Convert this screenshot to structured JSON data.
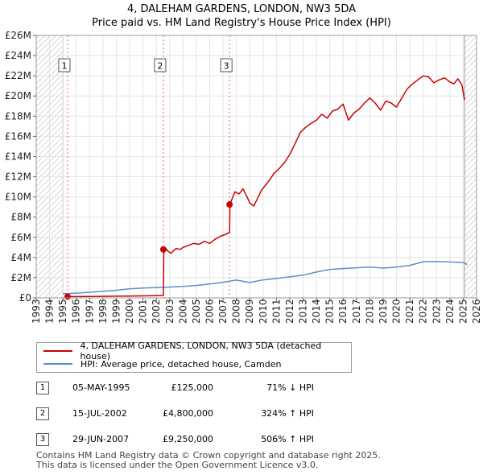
{
  "header": {
    "title_line1": "4, DALEHAM GARDENS, LONDON, NW3 5DA",
    "title_line2": "Price paid vs. HM Land Registry's House Price Index (HPI)"
  },
  "chart_data": {
    "type": "line",
    "title": "4, DALEHAM GARDENS, LONDON, NW3 5DA — Price paid vs. HM Land Registry's House Price Index (HPI)",
    "xlabel": "",
    "ylabel": "",
    "xlim": [
      1993,
      2026
    ],
    "ylim": [
      0,
      26000000
    ],
    "x_ticks": [
      1993,
      1994,
      1995,
      1996,
      1997,
      1998,
      1999,
      2000,
      2001,
      2002,
      2003,
      2004,
      2005,
      2006,
      2007,
      2008,
      2009,
      2010,
      2011,
      2012,
      2013,
      2014,
      2015,
      2016,
      2017,
      2018,
      2019,
      2020,
      2021,
      2022,
      2023,
      2024,
      2025,
      2026
    ],
    "y_ticks": [
      {
        "value": 0,
        "label": "£0"
      },
      {
        "value": 2000000,
        "label": "£2M"
      },
      {
        "value": 4000000,
        "label": "£4M"
      },
      {
        "value": 6000000,
        "label": "£6M"
      },
      {
        "value": 8000000,
        "label": "£8M"
      },
      {
        "value": 10000000,
        "label": "£10M"
      },
      {
        "value": 12000000,
        "label": "£12M"
      },
      {
        "value": 14000000,
        "label": "£14M"
      },
      {
        "value": 16000000,
        "label": "£16M"
      },
      {
        "value": 18000000,
        "label": "£18M"
      },
      {
        "value": 20000000,
        "label": "£20M"
      },
      {
        "value": 22000000,
        "label": "£22M"
      },
      {
        "value": 24000000,
        "label": "£24M"
      },
      {
        "value": 26000000,
        "label": "£26M"
      }
    ],
    "grid": true,
    "hatched_ranges": [
      [
        1993,
        1995.0
      ],
      [
        2025.1,
        2026
      ]
    ],
    "series": [
      {
        "name": "4, DALEHAM GARDENS, LONDON, NW3 5DA (detached house)",
        "color": "#cc0000",
        "x": [
          1995.35,
          1996,
          1997,
          1998,
          1999,
          2000,
          2001,
          2002.0,
          2002.53,
          2002.56,
          2002.7,
          2002.9,
          2003.1,
          2003.3,
          2003.5,
          2003.8,
          2004.0,
          2004.4,
          2004.8,
          2005.2,
          2005.6,
          2006.0,
          2006.4,
          2006.8,
          2007.2,
          2007.49,
          2007.52,
          2007.7,
          2007.9,
          2008.2,
          2008.5,
          2008.8,
          2009.0,
          2009.3,
          2009.6,
          2009.9,
          2010.2,
          2010.5,
          2010.8,
          2011.2,
          2011.6,
          2012.0,
          2012.4,
          2012.8,
          2013.2,
          2013.6,
          2014.0,
          2014.4,
          2014.8,
          2015.2,
          2015.6,
          2016.0,
          2016.4,
          2016.8,
          2017.2,
          2017.6,
          2018.0,
          2018.4,
          2018.8,
          2019.2,
          2019.6,
          2020.0,
          2020.4,
          2020.8,
          2021.2,
          2021.6,
          2022.0,
          2022.4,
          2022.8,
          2023.2,
          2023.6,
          2024.0,
          2024.3,
          2024.6,
          2024.9,
          2025.1
        ],
        "values": [
          125000,
          130000,
          140000,
          150000,
          165000,
          180000,
          200000,
          220000,
          250000,
          4800000,
          4900000,
          4600000,
          4400000,
          4700000,
          4900000,
          4800000,
          5000000,
          5200000,
          5400000,
          5300000,
          5600000,
          5400000,
          5800000,
          6100000,
          6300000,
          6500000,
          9250000,
          9900000,
          10500000,
          10300000,
          10800000,
          10000000,
          9400000,
          9100000,
          9900000,
          10700000,
          11200000,
          11700000,
          12300000,
          12800000,
          13400000,
          14200000,
          15300000,
          16400000,
          16900000,
          17300000,
          17600000,
          18200000,
          17800000,
          18500000,
          18700000,
          19200000,
          17600000,
          18300000,
          18700000,
          19300000,
          19800000,
          19300000,
          18600000,
          19500000,
          19300000,
          18900000,
          19800000,
          20700000,
          21200000,
          21600000,
          22000000,
          21900000,
          21300000,
          21600000,
          21800000,
          21400000,
          21200000,
          21700000,
          21100000,
          19600000
        ]
      },
      {
        "name": "HPI: Average price, detached house, Camden",
        "color": "#5b8fd0",
        "x": [
          1995.0,
          1996,
          1997,
          1998,
          1999,
          2000,
          2001,
          2002,
          2003,
          2004,
          2005,
          2006,
          2007,
          2008,
          2009,
          2010,
          2011,
          2012,
          2013,
          2014,
          2015,
          2016,
          2017,
          2018,
          2019,
          2020,
          2021,
          2022,
          2023,
          2024,
          2025.0,
          2025.3
        ],
        "values": [
          420000,
          470000,
          560000,
          650000,
          760000,
          900000,
          970000,
          1020000,
          1080000,
          1130000,
          1230000,
          1380000,
          1550000,
          1760000,
          1520000,
          1780000,
          1920000,
          2080000,
          2250000,
          2560000,
          2820000,
          2900000,
          2980000,
          3050000,
          2950000,
          3050000,
          3220000,
          3580000,
          3600000,
          3560000,
          3500000,
          3300000
        ]
      }
    ],
    "annotations": [
      {
        "label": "1",
        "x": 1995.35
      },
      {
        "label": "2",
        "x": 2002.53
      },
      {
        "label": "3",
        "x": 2007.49
      }
    ],
    "sale_points": [
      {
        "x": 1995.35,
        "value": 125000
      },
      {
        "x": 2002.53,
        "value": 4800000
      },
      {
        "x": 2007.49,
        "value": 9250000
      }
    ]
  },
  "legend": {
    "items": [
      {
        "label": "4, DALEHAM GARDENS, LONDON, NW3 5DA (detached house)",
        "color": "#cc0000"
      },
      {
        "label": "HPI: Average price, detached house, Camden",
        "color": "#5b8fd0"
      }
    ]
  },
  "transactions": [
    {
      "num": "1",
      "date": "05-MAY-1995",
      "price": "£125,000",
      "hpi": "71% ↓ HPI"
    },
    {
      "num": "2",
      "date": "15-JUL-2002",
      "price": "£4,800,000",
      "hpi": "324% ↑ HPI"
    },
    {
      "num": "3",
      "date": "29-JUN-2007",
      "price": "£9,250,000",
      "hpi": "506% ↑ HPI"
    }
  ],
  "footer": {
    "line1": "Contains HM Land Registry data © Crown copyright and database right 2025.",
    "line2": "This data is licensed under the Open Government Licence v3.0."
  }
}
